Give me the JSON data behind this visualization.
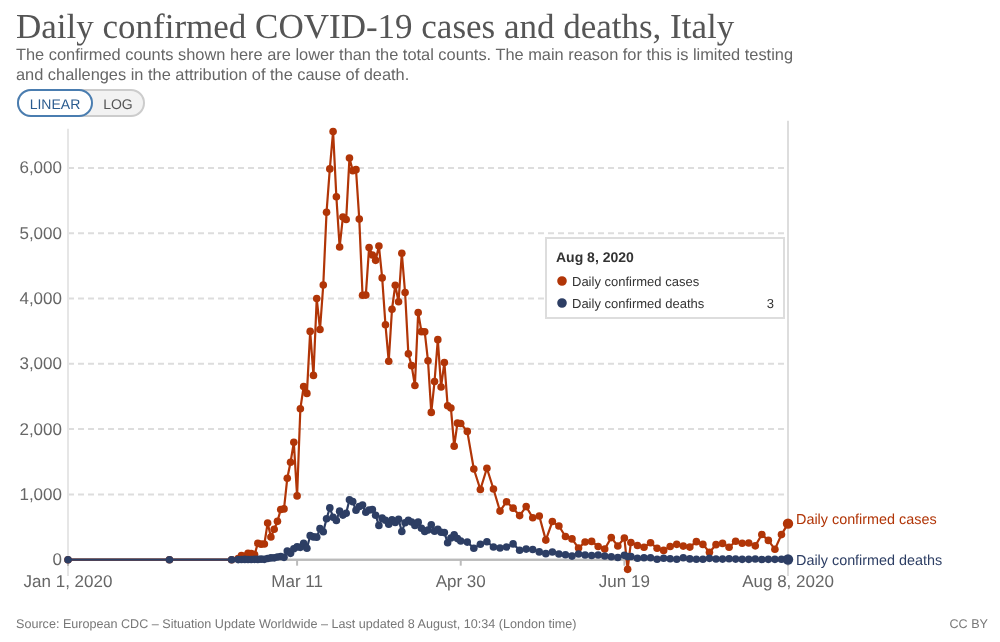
{
  "chart_data": {
    "type": "line",
    "title": "Daily confirmed COVID-19 cases and deaths, Italy",
    "subtitle": "The confirmed counts shown here are lower than the total counts. The main reason for this is limited testing and challenges in the attribution of the cause of death.",
    "annotations": [
      "Source: European CDC – Situation Update Worldwide – Last updated 8 August, 10:34 (London time)",
      "CC BY",
      "LINEAR",
      "LOG",
      "Aug 8, 2020",
      "Daily confirmed cases",
      "Daily confirmed deaths",
      "3"
    ],
    "x": [
      "2020-01-01",
      "2020-02-01",
      "2020-02-20",
      "2020-02-22",
      "2020-02-23",
      "2020-02-24",
      "2020-02-25",
      "2020-02-26",
      "2020-02-27",
      "2020-02-28",
      "2020-02-29",
      "2020-03-01",
      "2020-03-02",
      "2020-03-03",
      "2020-03-04",
      "2020-03-05",
      "2020-03-06",
      "2020-03-07",
      "2020-03-08",
      "2020-03-09",
      "2020-03-10",
      "2020-03-11",
      "2020-03-12",
      "2020-03-13",
      "2020-03-14",
      "2020-03-15",
      "2020-03-16",
      "2020-03-17",
      "2020-03-18",
      "2020-03-19",
      "2020-03-20",
      "2020-03-21",
      "2020-03-22",
      "2020-03-23",
      "2020-03-24",
      "2020-03-25",
      "2020-03-26",
      "2020-03-27",
      "2020-03-28",
      "2020-03-29",
      "2020-03-30",
      "2020-03-31",
      "2020-04-01",
      "2020-04-02",
      "2020-04-03",
      "2020-04-04",
      "2020-04-05",
      "2020-04-06",
      "2020-04-07",
      "2020-04-08",
      "2020-04-09",
      "2020-04-10",
      "2020-04-11",
      "2020-04-12",
      "2020-04-13",
      "2020-04-14",
      "2020-04-15",
      "2020-04-16",
      "2020-04-17",
      "2020-04-18",
      "2020-04-19",
      "2020-04-20",
      "2020-04-21",
      "2020-04-22",
      "2020-04-23",
      "2020-04-24",
      "2020-04-25",
      "2020-04-26",
      "2020-04-27",
      "2020-04-28",
      "2020-04-29",
      "2020-04-30",
      "2020-05-02",
      "2020-05-04",
      "2020-05-06",
      "2020-05-08",
      "2020-05-10",
      "2020-05-12",
      "2020-05-14",
      "2020-05-16",
      "2020-05-18",
      "2020-05-20",
      "2020-05-22",
      "2020-05-24",
      "2020-05-26",
      "2020-05-28",
      "2020-05-30",
      "2020-06-01",
      "2020-06-03",
      "2020-06-05",
      "2020-06-07",
      "2020-06-09",
      "2020-06-11",
      "2020-06-13",
      "2020-06-15",
      "2020-06-17",
      "2020-06-19",
      "2020-06-20",
      "2020-06-21",
      "2020-06-23",
      "2020-06-25",
      "2020-06-27",
      "2020-06-29",
      "2020-07-01",
      "2020-07-03",
      "2020-07-05",
      "2020-07-07",
      "2020-07-09",
      "2020-07-11",
      "2020-07-13",
      "2020-07-15",
      "2020-07-17",
      "2020-07-19",
      "2020-07-21",
      "2020-07-23",
      "2020-07-25",
      "2020-07-27",
      "2020-07-29",
      "2020-07-31",
      "2020-08-02",
      "2020-08-04",
      "2020-08-06",
      "2020-08-08"
    ],
    "series": [
      {
        "name": "Daily confirmed cases",
        "color": "#b13507",
        "values": [
          0,
          0,
          0,
          17,
          62,
          53,
          97,
          93,
          78,
          250,
          238,
          240,
          561,
          347,
          466,
          587,
          769,
          778,
          1247,
          1492,
          1797,
          977,
          2313,
          2651,
          2547,
          3497,
          2823,
          4000,
          3526,
          4207,
          5322,
          5986,
          6557,
          5560,
          4789,
          5249,
          5210,
          6153,
          5959,
          5974,
          5217,
          4050,
          4053,
          4782,
          4668,
          4585,
          4805,
          4316,
          3599,
          3039,
          3836,
          4204,
          3951,
          4694,
          4092,
          3153,
          2972,
          2667,
          3786,
          3493,
          3491,
          3047,
          2256,
          2729,
          3370,
          2646,
          3021,
          2357,
          2324,
          1739,
          2091,
          2086,
          1965,
          1389,
          1075,
          1401,
          1083,
          744,
          888,
          789,
          675,
          813,
          642,
          669,
          300,
          584,
          516,
          355,
          318,
          177,
          270,
          280,
          202,
          163,
          338,
          210,
          333,
          -148,
          264,
          218,
          190,
          259,
          174,
          142,
          201,
          235,
          208,
          193,
          276,
          234,
          114,
          230,
          249,
          190,
          282,
          252,
          255,
          212,
          386,
          295,
          159,
          384,
          552
        ]
      },
      {
        "name": "Daily confirmed deaths",
        "color": "#2d3e64",
        "values": [
          0,
          0,
          0,
          1,
          2,
          4,
          3,
          2,
          5,
          4,
          8,
          5,
          18,
          27,
          28,
          41,
          49,
          36,
          133,
          97,
          168,
          196,
          189,
          250,
          175,
          368,
          349,
          345,
          475,
          427,
          627,
          793,
          651,
          601,
          743,
          683,
          712,
          919,
          889,
          756,
          812,
          837,
          727,
          760,
          766,
          681,
          525,
          636,
          604,
          542,
          610,
          570,
          619,
          431,
          566,
          602,
          578,
          525,
          575,
          482,
          433,
          454,
          534,
          437,
          464,
          420,
          415,
          260,
          333,
          382,
          323,
          285,
          269,
          174,
          236,
          274,
          194,
          179,
          195,
          242,
          145,
          162,
          156,
          119,
          92,
          117,
          87,
          75,
          55,
          88,
          72,
          65,
          71,
          56,
          44,
          34,
          66,
          47,
          49,
          23,
          30,
          30,
          6,
          21,
          15,
          7,
          30,
          12,
          7,
          7,
          20,
          11,
          9,
          15,
          9,
          5,
          5,
          11,
          3,
          5,
          5,
          6,
          3
        ]
      }
    ],
    "xlim": [
      "2020-01-01",
      "2020-08-08"
    ],
    "xticks": [
      {
        "value": "2020-01-01",
        "label": "Jan 1, 2020"
      },
      {
        "value": "2020-03-11",
        "label": "Mar 11"
      },
      {
        "value": "2020-04-30",
        "label": "Apr 30"
      },
      {
        "value": "2020-06-19",
        "label": "Jun 19"
      },
      {
        "value": "2020-08-08",
        "label": "Aug 8, 2020"
      }
    ],
    "ylim": [
      -250,
      6600
    ],
    "yticks": [
      0,
      {
        "value": 1000,
        "label": "1,000"
      },
      {
        "value": 2000,
        "label": "2,000"
      },
      {
        "value": 3000,
        "label": "3,000"
      },
      {
        "value": 4000,
        "label": "4,000"
      },
      {
        "value": 5000,
        "label": "5,000"
      },
      {
        "value": 6000,
        "label": "6,000"
      }
    ],
    "ref_lines": [
      {
        "axis": "x",
        "value": "2020-08-08",
        "color": "#dddddd"
      }
    ],
    "grid": "y",
    "legend": "right",
    "marker": "circle",
    "line_style": "solid"
  }
}
